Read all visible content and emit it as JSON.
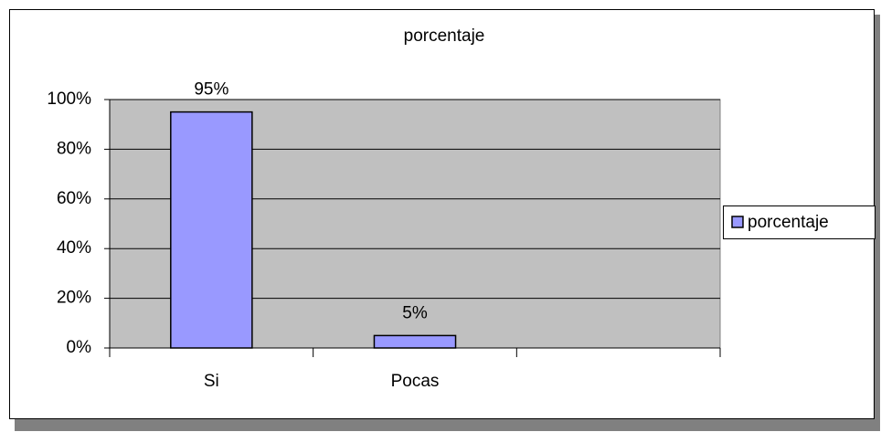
{
  "chart_data": {
    "type": "bar",
    "title": "porcentaje",
    "categories": [
      "Si",
      "Pocas",
      null
    ],
    "series": [
      {
        "name": "porcentaje",
        "color": "#9999ff",
        "values": [
          95,
          5,
          null
        ],
        "value_labels": [
          "95%",
          "5%",
          null
        ]
      }
    ],
    "ylim": [
      0,
      100
    ],
    "yticks": [
      {
        "value": 0,
        "label": "0%"
      },
      {
        "value": 20,
        "label": "20%"
      },
      {
        "value": 40,
        "label": "40%"
      },
      {
        "value": 60,
        "label": "60%"
      },
      {
        "value": 80,
        "label": "80%"
      },
      {
        "value": 100,
        "label": "100%"
      }
    ],
    "grid": true,
    "legend": "right"
  }
}
